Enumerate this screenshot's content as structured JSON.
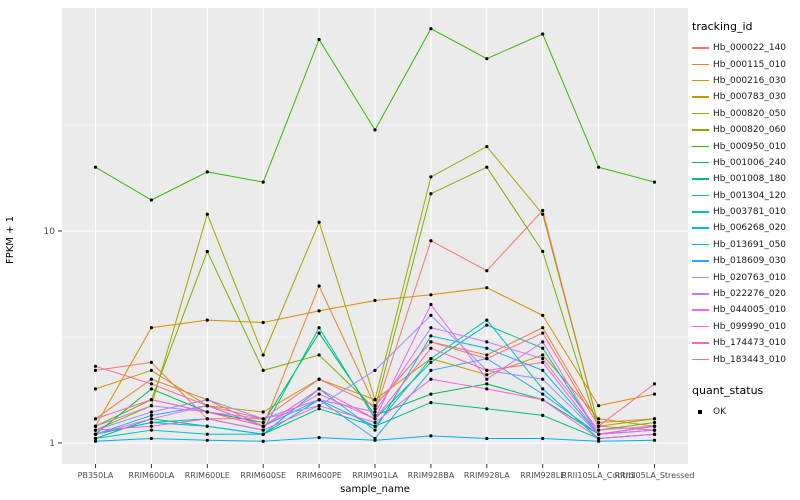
{
  "chart_data": {
    "type": "line",
    "title": "",
    "xlabel": "sample_name",
    "ylabel": "FPKM + 1",
    "y_scale": "log10",
    "y_ticks": [
      1,
      10
    ],
    "y_minor": [
      3.1623,
      31.623
    ],
    "ylim": [
      0.8,
      110
    ],
    "grid": true,
    "legend_position": "right",
    "panel_bg": "#EBEBEB",
    "grid_color": "#FFFFFF",
    "point_color": "#000000",
    "categories": [
      "PB350LA",
      "RRIM600LA",
      "RRIM600LE",
      "RRIM600SE",
      "RRIM600PE",
      "RRIM901LA",
      "RRIM928BA",
      "RRIM928LA",
      "RRIM928LE",
      "RRII105LA_Control",
      "RRII105LA_Stressed"
    ],
    "series": [
      {
        "name": "Hb_000022_140",
        "color": "#F8766D",
        "values": [
          2.2,
          2.4,
          1.3,
          1.3,
          1.6,
          1.4,
          9.0,
          6.5,
          12.5,
          1.2,
          1.15
        ]
      },
      {
        "name": "Hb_000115_010",
        "color": "#EA8331",
        "values": [
          1.3,
          2.0,
          1.6,
          1.2,
          5.5,
          1.5,
          3.0,
          2.6,
          3.5,
          1.25,
          1.3
        ]
      },
      {
        "name": "Hb_000216_030",
        "color": "#D89000",
        "values": [
          1.2,
          3.5,
          3.8,
          3.7,
          4.2,
          4.7,
          5.0,
          5.4,
          4.0,
          1.5,
          1.7
        ]
      },
      {
        "name": "Hb_000783_030",
        "color": "#C09B00",
        "values": [
          1.8,
          2.2,
          1.5,
          1.4,
          2.0,
          1.6,
          2.5,
          2.1,
          2.6,
          1.3,
          1.2
        ]
      },
      {
        "name": "Hb_000820_050",
        "color": "#A3A500",
        "values": [
          1.15,
          1.5,
          12.0,
          2.6,
          11.0,
          1.6,
          18.0,
          25.0,
          12.0,
          1.2,
          1.3
        ]
      },
      {
        "name": "Hb_000820_060",
        "color": "#7CAE00",
        "values": [
          1.2,
          1.6,
          8.0,
          2.2,
          2.6,
          1.45,
          15.0,
          20.0,
          8.0,
          1.15,
          1.25
        ]
      },
      {
        "name": "Hb_000950_010",
        "color": "#39B600",
        "values": [
          20,
          14,
          19,
          17,
          80,
          30,
          90,
          65,
          85,
          20,
          17
        ]
      },
      {
        "name": "Hb_001006_240",
        "color": "#00BB4E",
        "values": [
          1.1,
          1.8,
          1.4,
          1.25,
          3.3,
          1.35,
          1.7,
          1.9,
          1.6,
          1.1,
          1.2
        ]
      },
      {
        "name": "Hb_001008_180",
        "color": "#00BF7D",
        "values": [
          1.05,
          1.3,
          1.2,
          1.1,
          1.45,
          1.2,
          1.55,
          1.45,
          1.35,
          1.05,
          1.1
        ]
      },
      {
        "name": "Hb_001304_120",
        "color": "#00C1A3",
        "values": [
          1.1,
          1.25,
          1.3,
          1.15,
          3.5,
          1.3,
          2.4,
          3.6,
          2.8,
          1.1,
          1.15
        ]
      },
      {
        "name": "Hb_003781_010",
        "color": "#00BFC4",
        "values": [
          1.05,
          1.15,
          1.1,
          1.1,
          1.6,
          1.2,
          2.5,
          3.8,
          1.8,
          1.05,
          1.1
        ]
      },
      {
        "name": "Hb_006268_020",
        "color": "#00BAE0",
        "values": [
          1.1,
          1.25,
          1.2,
          1.1,
          1.8,
          1.15,
          3.2,
          2.8,
          2.2,
          1.1,
          1.15
        ]
      },
      {
        "name": "Hb_013691_050",
        "color": "#00B0F6",
        "values": [
          1.02,
          1.05,
          1.03,
          1.02,
          1.06,
          1.03,
          1.08,
          1.05,
          1.05,
          1.02,
          1.03
        ]
      },
      {
        "name": "Hb_018609_030",
        "color": "#35A2FF",
        "values": [
          1.1,
          1.35,
          1.5,
          1.2,
          1.6,
          1.05,
          2.2,
          2.5,
          1.7,
          1.1,
          1.2
        ]
      },
      {
        "name": "Hb_020763_010",
        "color": "#9590FF",
        "values": [
          1.15,
          1.4,
          1.6,
          1.3,
          1.5,
          2.2,
          4.0,
          2.2,
          2.0,
          1.1,
          1.15
        ]
      },
      {
        "name": "Hb_022276_020",
        "color": "#C77CFF",
        "values": [
          1.2,
          1.5,
          1.4,
          1.3,
          1.6,
          1.4,
          3.5,
          3.0,
          2.5,
          1.15,
          1.2
        ]
      },
      {
        "name": "Hb_044005_010",
        "color": "#E76BF3",
        "values": [
          1.1,
          1.3,
          1.5,
          1.2,
          1.7,
          1.3,
          4.5,
          2.0,
          3.0,
          1.1,
          1.15
        ]
      },
      {
        "name": "Hb_099990_010",
        "color": "#FA62DB",
        "values": [
          1.15,
          1.2,
          1.3,
          1.15,
          1.5,
          1.25,
          2.0,
          1.8,
          1.6,
          1.05,
          1.1
        ]
      },
      {
        "name": "Hb_174473_010",
        "color": "#FF62BC",
        "values": [
          1.3,
          1.6,
          1.4,
          1.2,
          1.8,
          1.3,
          2.8,
          2.2,
          2.4,
          1.1,
          1.2
        ]
      },
      {
        "name": "Hb_183443_010",
        "color": "#FF6A98",
        "values": [
          2.3,
          1.9,
          1.5,
          1.3,
          2.0,
          1.5,
          3.0,
          2.5,
          3.3,
          1.2,
          1.9
        ]
      }
    ],
    "legend": {
      "color_title": "tracking_id",
      "shape_title": "quant_status",
      "shape_items": [
        {
          "label": "OK"
        }
      ]
    }
  }
}
